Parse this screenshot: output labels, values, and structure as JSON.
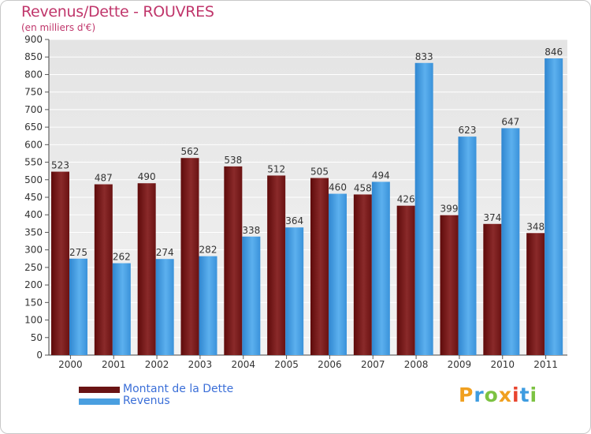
{
  "chart_title": "Revenus/Dette - ROUVRES",
  "chart_subtitle": "(en milliers d'€)",
  "brand": {
    "letters": [
      "P",
      "r",
      "o",
      "x",
      "i",
      "t",
      "i"
    ],
    "colors": [
      "#f0a020",
      "#3e9ce0",
      "#7cc242",
      "#f0a020",
      "#e8442e",
      "#3e9ce0",
      "#7cc242"
    ]
  },
  "chart_data": {
    "type": "bar",
    "categories": [
      "2000",
      "2001",
      "2002",
      "2003",
      "2004",
      "2005",
      "2006",
      "2007",
      "2008",
      "2009",
      "2010",
      "2011"
    ],
    "series": [
      {
        "name": "Montant de la Dette",
        "color": "#7a1b1b",
        "values": [
          523,
          487,
          490,
          562,
          538,
          512,
          505,
          458,
          426,
          399,
          374,
          348
        ]
      },
      {
        "name": "Revenus",
        "color": "#4a9fe0",
        "values": [
          275,
          262,
          274,
          282,
          338,
          364,
          460,
          494,
          833,
          623,
          647,
          846
        ]
      }
    ],
    "ylim": [
      0,
      900
    ],
    "ytick_step": 50,
    "grid": true,
    "legend": "bottom-left"
  }
}
